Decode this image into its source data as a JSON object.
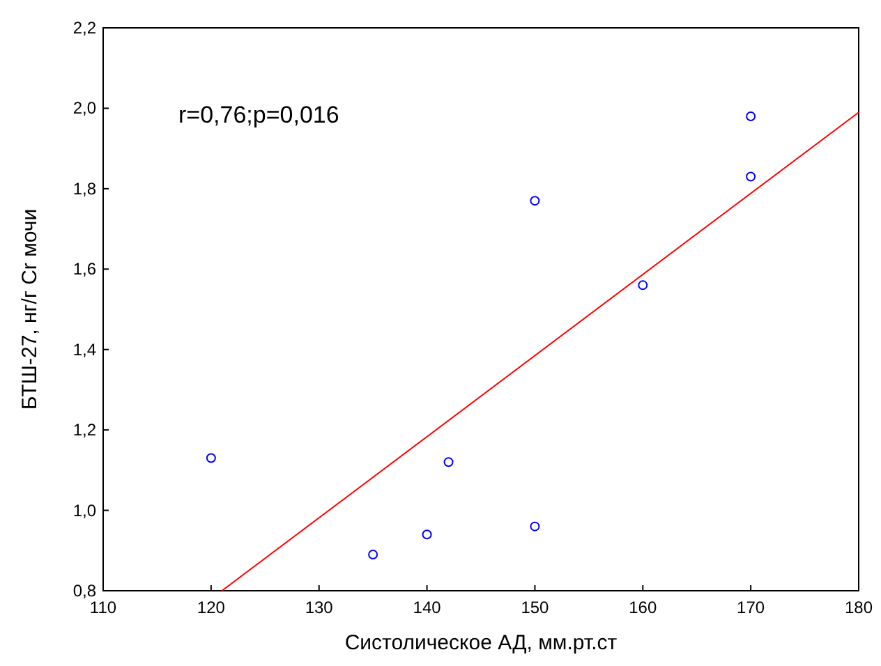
{
  "chart_data": {
    "type": "scatter",
    "xlabel": "Систолическое АД, мм.рт.ст",
    "ylabel": "БТШ-27, нг/г Cr мочи",
    "annotations": [
      "r=0,76;p=0,016"
    ],
    "xlim": [
      110,
      180
    ],
    "xticks": [
      110,
      120,
      130,
      140,
      150,
      160,
      170,
      180
    ],
    "ylim": [
      0.8,
      2.2
    ],
    "yticks": [
      {
        "value": 0.8,
        "label": "0,8"
      },
      {
        "value": 1.0,
        "label": "1,0"
      },
      {
        "value": 1.2,
        "label": "1,2"
      },
      {
        "value": 1.4,
        "label": "1,4"
      },
      {
        "value": 1.6,
        "label": "1,6"
      },
      {
        "value": 1.8,
        "label": "1,8"
      },
      {
        "value": 2.0,
        "label": "2,0"
      },
      {
        "value": 2.2,
        "label": "2,2"
      }
    ],
    "grid": false,
    "series": [
      {
        "marker": "circle",
        "color": "#0000ff",
        "x": [
          120,
          135,
          140,
          142,
          150,
          150,
          160,
          170,
          170
        ],
        "values": [
          1.13,
          0.89,
          0.94,
          1.12,
          1.77,
          0.96,
          1.56,
          1.98,
          1.83
        ]
      },
      {
        "type": "line",
        "color": "#ff0000",
        "x": [
          121,
          180
        ],
        "values": [
          0.8,
          1.99
        ]
      }
    ]
  }
}
